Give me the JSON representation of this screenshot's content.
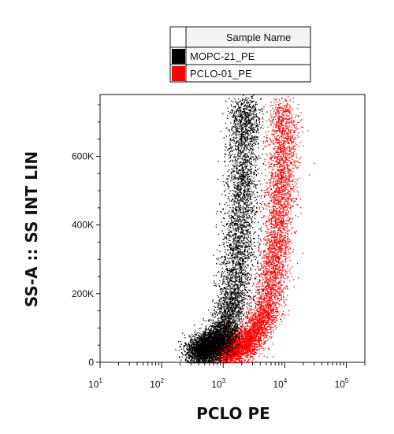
{
  "chart_data": {
    "type": "scatter",
    "xlabel": "PCLO PE",
    "ylabel": "SS-A :: SS INT LIN",
    "x_scale": "log",
    "xlim": [
      10,
      200000
    ],
    "ylim": [
      0,
      780000
    ],
    "x_ticks": [
      {
        "value": 10,
        "base": "10",
        "exp": "1"
      },
      {
        "value": 100,
        "base": "10",
        "exp": "2"
      },
      {
        "value": 1000,
        "base": "10",
        "exp": "3"
      },
      {
        "value": 10000,
        "base": "10",
        "exp": "4"
      },
      {
        "value": 100000,
        "base": "10",
        "exp": "5"
      }
    ],
    "y_ticks": [
      {
        "value": 0,
        "label": "0"
      },
      {
        "value": 200000,
        "label": "200K"
      },
      {
        "value": 400000,
        "label": "400K"
      },
      {
        "value": 600000,
        "label": "600K"
      }
    ],
    "legend": {
      "header": "Sample Name",
      "placement": "top-right, above plot",
      "entries": [
        {
          "name": "MOPC-21_PE",
          "color": "#000000"
        },
        {
          "name": "PCLO-01_PE",
          "color": "#ff0000"
        }
      ]
    },
    "series": [
      {
        "name": "MOPC-21_PE",
        "color": "#000000",
        "description_points": [
          {
            "x": 400,
            "y": 30000
          },
          {
            "x": 700,
            "y": 50000
          },
          {
            "x": 1000,
            "y": 90000
          },
          {
            "x": 1500,
            "y": 200000
          },
          {
            "x": 1800,
            "y": 350000
          },
          {
            "x": 2000,
            "y": 500000
          },
          {
            "x": 2100,
            "y": 650000
          },
          {
            "x": 2300,
            "y": 760000
          }
        ]
      },
      {
        "name": "PCLO-01_PE",
        "color": "#ff0000",
        "description_points": [
          {
            "x": 1000,
            "y": 30000
          },
          {
            "x": 2500,
            "y": 60000
          },
          {
            "x": 5000,
            "y": 150000
          },
          {
            "x": 7000,
            "y": 300000
          },
          {
            "x": 8000,
            "y": 450000
          },
          {
            "x": 9000,
            "y": 600000
          },
          {
            "x": 9500,
            "y": 750000
          }
        ]
      }
    ]
  }
}
